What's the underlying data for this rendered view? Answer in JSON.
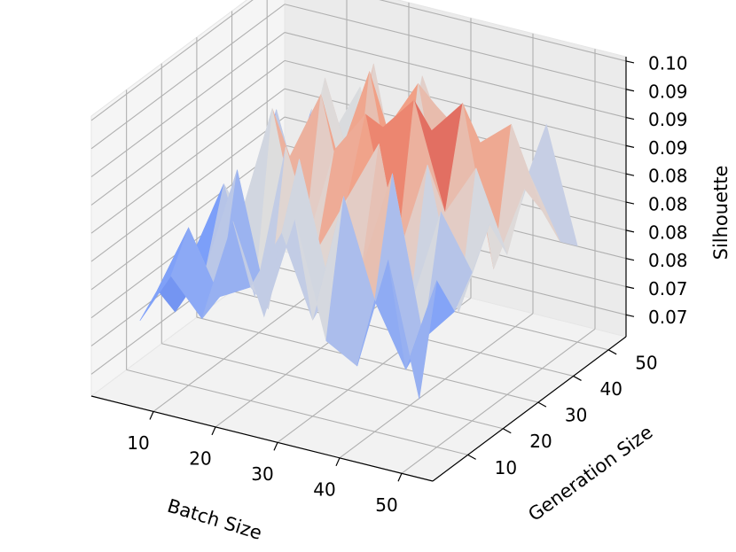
{
  "chart_data": {
    "type": "surface3d",
    "xlabel": "Batch Size",
    "ylabel": "Generation Size",
    "zlabel": "Silhouette",
    "x_ticks": [
      "10",
      "20",
      "30",
      "40",
      "50"
    ],
    "y_ticks": [
      "10",
      "20",
      "30",
      "40",
      "50"
    ],
    "z_ticks": [
      "0.07",
      "0.07",
      "0.08",
      "0.08",
      "0.08",
      "0.08",
      "0.09",
      "0.09",
      "0.09",
      "0.10"
    ],
    "xlim": [
      0,
      55
    ],
    "ylim": [
      0,
      55
    ],
    "zlim": [
      0.068,
      0.1
    ],
    "colormap": "coolwarm",
    "grid": true,
    "x": [
      5,
      10,
      15,
      20,
      25,
      30,
      35,
      40,
      45,
      50
    ],
    "y": [
      5,
      10,
      15,
      20,
      25,
      30,
      35,
      40,
      45,
      50
    ],
    "z": [
      [
        0.076,
        0.082,
        0.078,
        0.09,
        0.08,
        0.092,
        0.079,
        0.077,
        0.09,
        0.075
      ],
      [
        0.078,
        0.086,
        0.079,
        0.081,
        0.088,
        0.079,
        0.094,
        0.083,
        0.076,
        0.087
      ],
      [
        0.074,
        0.08,
        0.092,
        0.077,
        0.095,
        0.081,
        0.084,
        0.096,
        0.078,
        0.082
      ],
      [
        0.079,
        0.088,
        0.076,
        0.094,
        0.083,
        0.09,
        0.097,
        0.079,
        0.091,
        0.085
      ],
      [
        0.075,
        0.083,
        0.096,
        0.08,
        0.093,
        0.098,
        0.082,
        0.094,
        0.078,
        0.089
      ],
      [
        0.081,
        0.077,
        0.089,
        0.097,
        0.082,
        0.095,
        0.099,
        0.087,
        0.093,
        0.084
      ],
      [
        0.076,
        0.092,
        0.08,
        0.088,
        0.099,
        0.081,
        0.094,
        0.098,
        0.08,
        0.09
      ],
      [
        0.083,
        0.079,
        0.095,
        0.084,
        0.091,
        0.097,
        0.078,
        0.092,
        0.095,
        0.086
      ],
      [
        0.077,
        0.089,
        0.081,
        0.096,
        0.079,
        0.093,
        0.09,
        0.083,
        0.088,
        0.081
      ],
      [
        0.08,
        0.084,
        0.091,
        0.078,
        0.094,
        0.085,
        0.088,
        0.08,
        0.092,
        0.079
      ]
    ]
  }
}
